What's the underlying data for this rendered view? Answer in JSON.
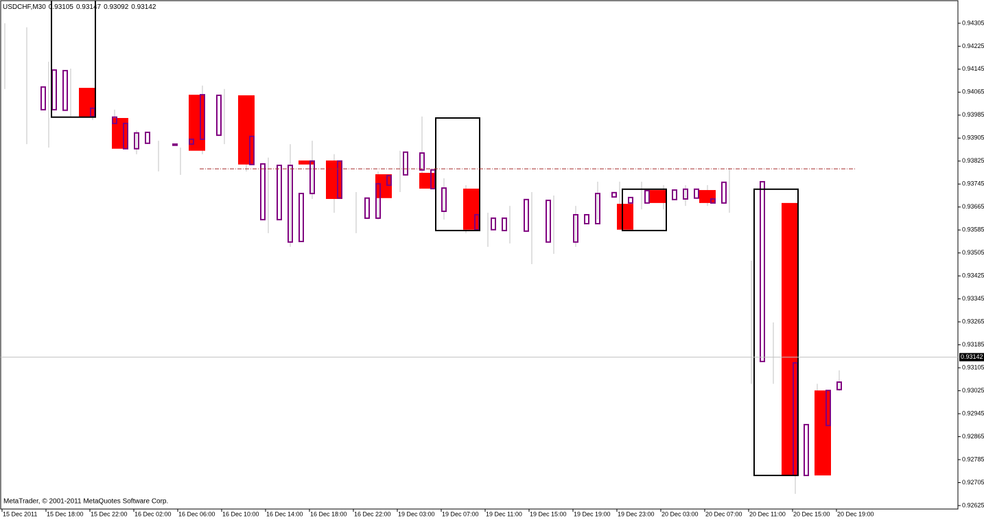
{
  "chart_data": {
    "type": "candlestick",
    "title": "USDCHF,M30",
    "header_values": [
      0.93105,
      0.93147,
      0.93092,
      0.93142
    ],
    "footer": "MetaTrader, © 2001-2011 MetaQuotes Software Corp.",
    "xlim": [
      -0.375,
      174.125
    ],
    "ylim": [
      0.92613,
      0.94386
    ],
    "yticks": [
      0.94305,
      0.94225,
      0.94145,
      0.94065,
      0.93985,
      0.93905,
      0.93825,
      0.93745,
      0.93665,
      0.93585,
      0.93505,
      0.93425,
      0.93345,
      0.93265,
      0.93185,
      0.93105,
      0.93025,
      0.92945,
      0.92865,
      0.92785,
      0.92705,
      0.92625
    ],
    "xticks": [
      {
        "value": 0,
        "label": "15 Dec 2011"
      },
      {
        "value": 8,
        "label": "15 Dec 18:00"
      },
      {
        "value": 16,
        "label": "15 Dec 22:00"
      },
      {
        "value": 24,
        "label": "16 Dec 02:00"
      },
      {
        "value": 32,
        "label": "16 Dec 06:00"
      },
      {
        "value": 40,
        "label": "16 Dec 10:00"
      },
      {
        "value": 48,
        "label": "16 Dec 14:00"
      },
      {
        "value": 56,
        "label": "16 Dec 18:00"
      },
      {
        "value": 64,
        "label": "16 Dec 22:00"
      },
      {
        "value": 72,
        "label": "19 Dec 03:00"
      },
      {
        "value": 80,
        "label": "19 Dec 07:00"
      },
      {
        "value": 88,
        "label": "19 Dec 11:00"
      },
      {
        "value": 96,
        "label": "19 Dec 15:00"
      },
      {
        "value": 104,
        "label": "19 Dec 19:00"
      },
      {
        "value": 112,
        "label": "19 Dec 23:00"
      },
      {
        "value": 120,
        "label": "20 Dec 03:00"
      },
      {
        "value": 128,
        "label": "20 Dec 07:00"
      },
      {
        "value": 136,
        "label": "20 Dec 11:00"
      },
      {
        "value": 144,
        "label": "20 Dec 15:00"
      },
      {
        "value": 152,
        "label": "20 Dec 19:00"
      }
    ],
    "bars": {
      "color": "#c0c0c0",
      "x": [
        0,
        4,
        8,
        12,
        16,
        20,
        24,
        28,
        32,
        36,
        40,
        44,
        48,
        52,
        56,
        60,
        64,
        68,
        72,
        76,
        80,
        84,
        88,
        92,
        96,
        100,
        104,
        108,
        112,
        116,
        120,
        124,
        128,
        132,
        136,
        140,
        144,
        148,
        152
      ],
      "high": [
        0.94305,
        0.94291,
        0.94171,
        0.94147,
        0.94076,
        0.94004,
        0.93932,
        0.93896,
        0.93872,
        0.94088,
        0.94076,
        0.94028,
        0.93837,
        0.93884,
        0.93896,
        0.93849,
        0.93717,
        0.93789,
        0.93861,
        0.9398,
        0.93765,
        0.93741,
        0.93645,
        0.93669,
        0.93717,
        0.93705,
        0.93669,
        0.93753,
        0.93753,
        0.93753,
        0.93741,
        0.93741,
        0.93741,
        0.93801,
        0.93478,
        0.93263,
        0.93143,
        0.93049,
        0.93096
      ],
      "low": [
        0.94076,
        0.93884,
        0.93872,
        0.9398,
        0.93968,
        0.93872,
        0.93849,
        0.93789,
        0.93777,
        0.93849,
        0.93884,
        0.93789,
        0.93574,
        0.93526,
        0.93693,
        0.93645,
        0.93574,
        0.93621,
        0.93717,
        0.93765,
        0.93621,
        0.93574,
        0.93526,
        0.93538,
        0.93466,
        0.93502,
        0.93526,
        0.93621,
        0.93598,
        0.93657,
        0.93657,
        0.93669,
        0.93669,
        0.93645,
        0.93049,
        0.93049,
        0.92666,
        0.92833,
        0.93024
      ]
    },
    "candles_down": {
      "color": "#ff0000",
      "span": 3,
      "x": [
        14,
        20,
        34,
        43,
        54,
        59,
        68,
        76,
        84,
        112,
        118,
        127,
        142,
        148
      ],
      "open": [
        0.9408,
        0.93975,
        0.94056,
        0.94054,
        0.93827,
        0.93827,
        0.93779,
        0.93784,
        0.93729,
        0.93676,
        0.93724,
        0.93724,
        0.93679,
        0.93026
      ],
      "close": [
        0.9398,
        0.93868,
        0.93861,
        0.93813,
        0.93813,
        0.93693,
        0.93696,
        0.93729,
        0.93586,
        0.93586,
        0.93679,
        0.93679,
        0.9273,
        0.9273
      ]
    },
    "candles_up": {
      "color": "#800080",
      "span": 1,
      "x": [
        7,
        9,
        11,
        16,
        20,
        22,
        24,
        26,
        31,
        34,
        36,
        39,
        45,
        47,
        50,
        52,
        54,
        56,
        61,
        66,
        68,
        70,
        73,
        76,
        78,
        80,
        86,
        89,
        91,
        95,
        99,
        104,
        106,
        108,
        111,
        114,
        117,
        122,
        124,
        126,
        129,
        131,
        138,
        144,
        146,
        150,
        152
      ],
      "open": [
        0.94004,
        0.94004,
        0.94002,
        0.9398,
        0.93956,
        0.93868,
        0.93868,
        0.93887,
        0.9388,
        0.93884,
        0.93901,
        0.93915,
        0.93813,
        0.93621,
        0.93621,
        0.93543,
        0.93545,
        0.93712,
        0.93696,
        0.93626,
        0.93626,
        0.93741,
        0.93777,
        0.93794,
        0.93729,
        0.9365,
        0.93586,
        0.93586,
        0.93583,
        0.93581,
        0.93543,
        0.93543,
        0.93607,
        0.93607,
        0.937,
        0.93679,
        0.93679,
        0.93691,
        0.93693,
        0.93696,
        0.93679,
        0.93679,
        0.93127,
        0.9273,
        0.9273,
        0.92904,
        0.93029
      ],
      "close": [
        0.94083,
        0.94142,
        0.9414,
        0.94009,
        0.93978,
        0.93956,
        0.93923,
        0.93925,
        0.93884,
        0.93901,
        0.94056,
        0.94054,
        0.93911,
        0.93815,
        0.9381,
        0.9381,
        0.93712,
        0.93825,
        0.93825,
        0.93696,
        0.93746,
        0.93774,
        0.93856,
        0.93853,
        0.93794,
        0.93731,
        0.93638,
        0.93626,
        0.93626,
        0.93691,
        0.93688,
        0.93638,
        0.93638,
        0.93712,
        0.93715,
        0.93698,
        0.93722,
        0.93724,
        0.93727,
        0.93727,
        0.93693,
        0.93751,
        0.93753,
        0.93122,
        0.92907,
        0.93026,
        0.93055
      ]
    },
    "zones": {
      "color": "#000000",
      "span": 8,
      "x": [
        9,
        79,
        113,
        137
      ],
      "top": [
        0.9439,
        0.93975,
        0.93727,
        0.93727
      ],
      "bottom": [
        0.93978,
        0.93583,
        0.93583,
        0.9273
      ]
    },
    "level_line": {
      "value": 0.93798,
      "from": 36,
      "to": 155.5,
      "color": "#a52a2a"
    },
    "current_price": 0.93142,
    "current_color": "#c0c0c0"
  }
}
